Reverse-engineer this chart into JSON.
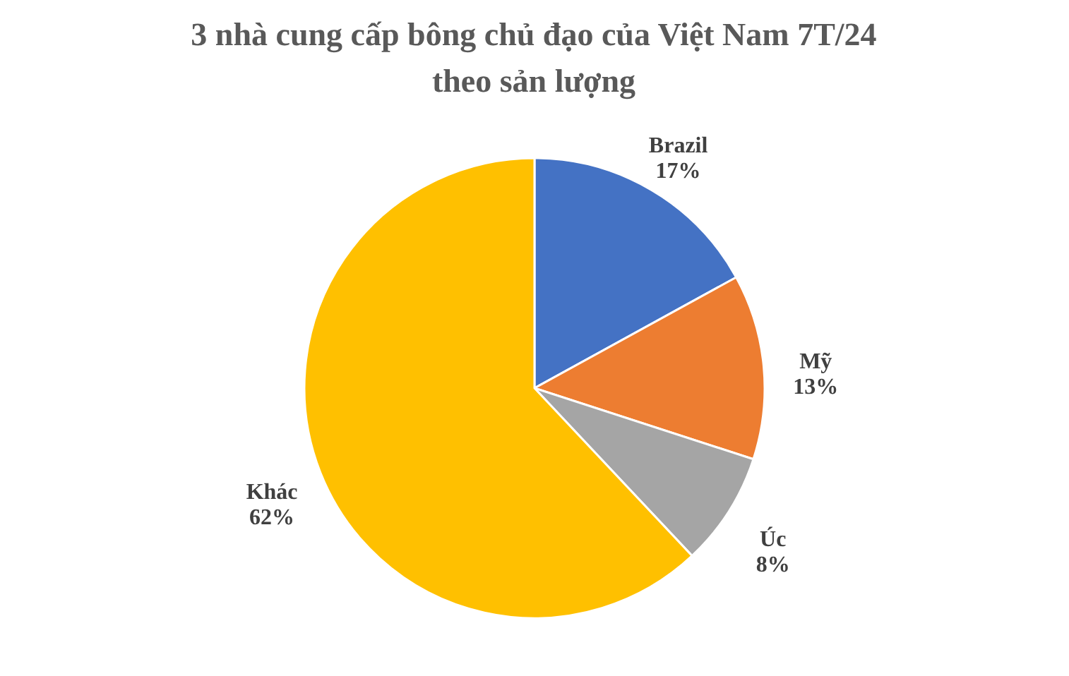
{
  "chart_data": {
    "type": "pie",
    "title": "3 nhà cung cấp bông chủ đạo của Việt Nam 7T/24 theo sản lượng",
    "categories": [
      "Brazil",
      "Mỹ",
      "Úc",
      "Khác"
    ],
    "values": [
      17,
      13,
      8,
      62
    ],
    "colors": [
      "#4472c4",
      "#ed7d31",
      "#a5a5a5",
      "#ffc000"
    ],
    "value_labels": [
      "17%",
      "13%",
      "8%",
      "62%"
    ],
    "legend": false
  }
}
